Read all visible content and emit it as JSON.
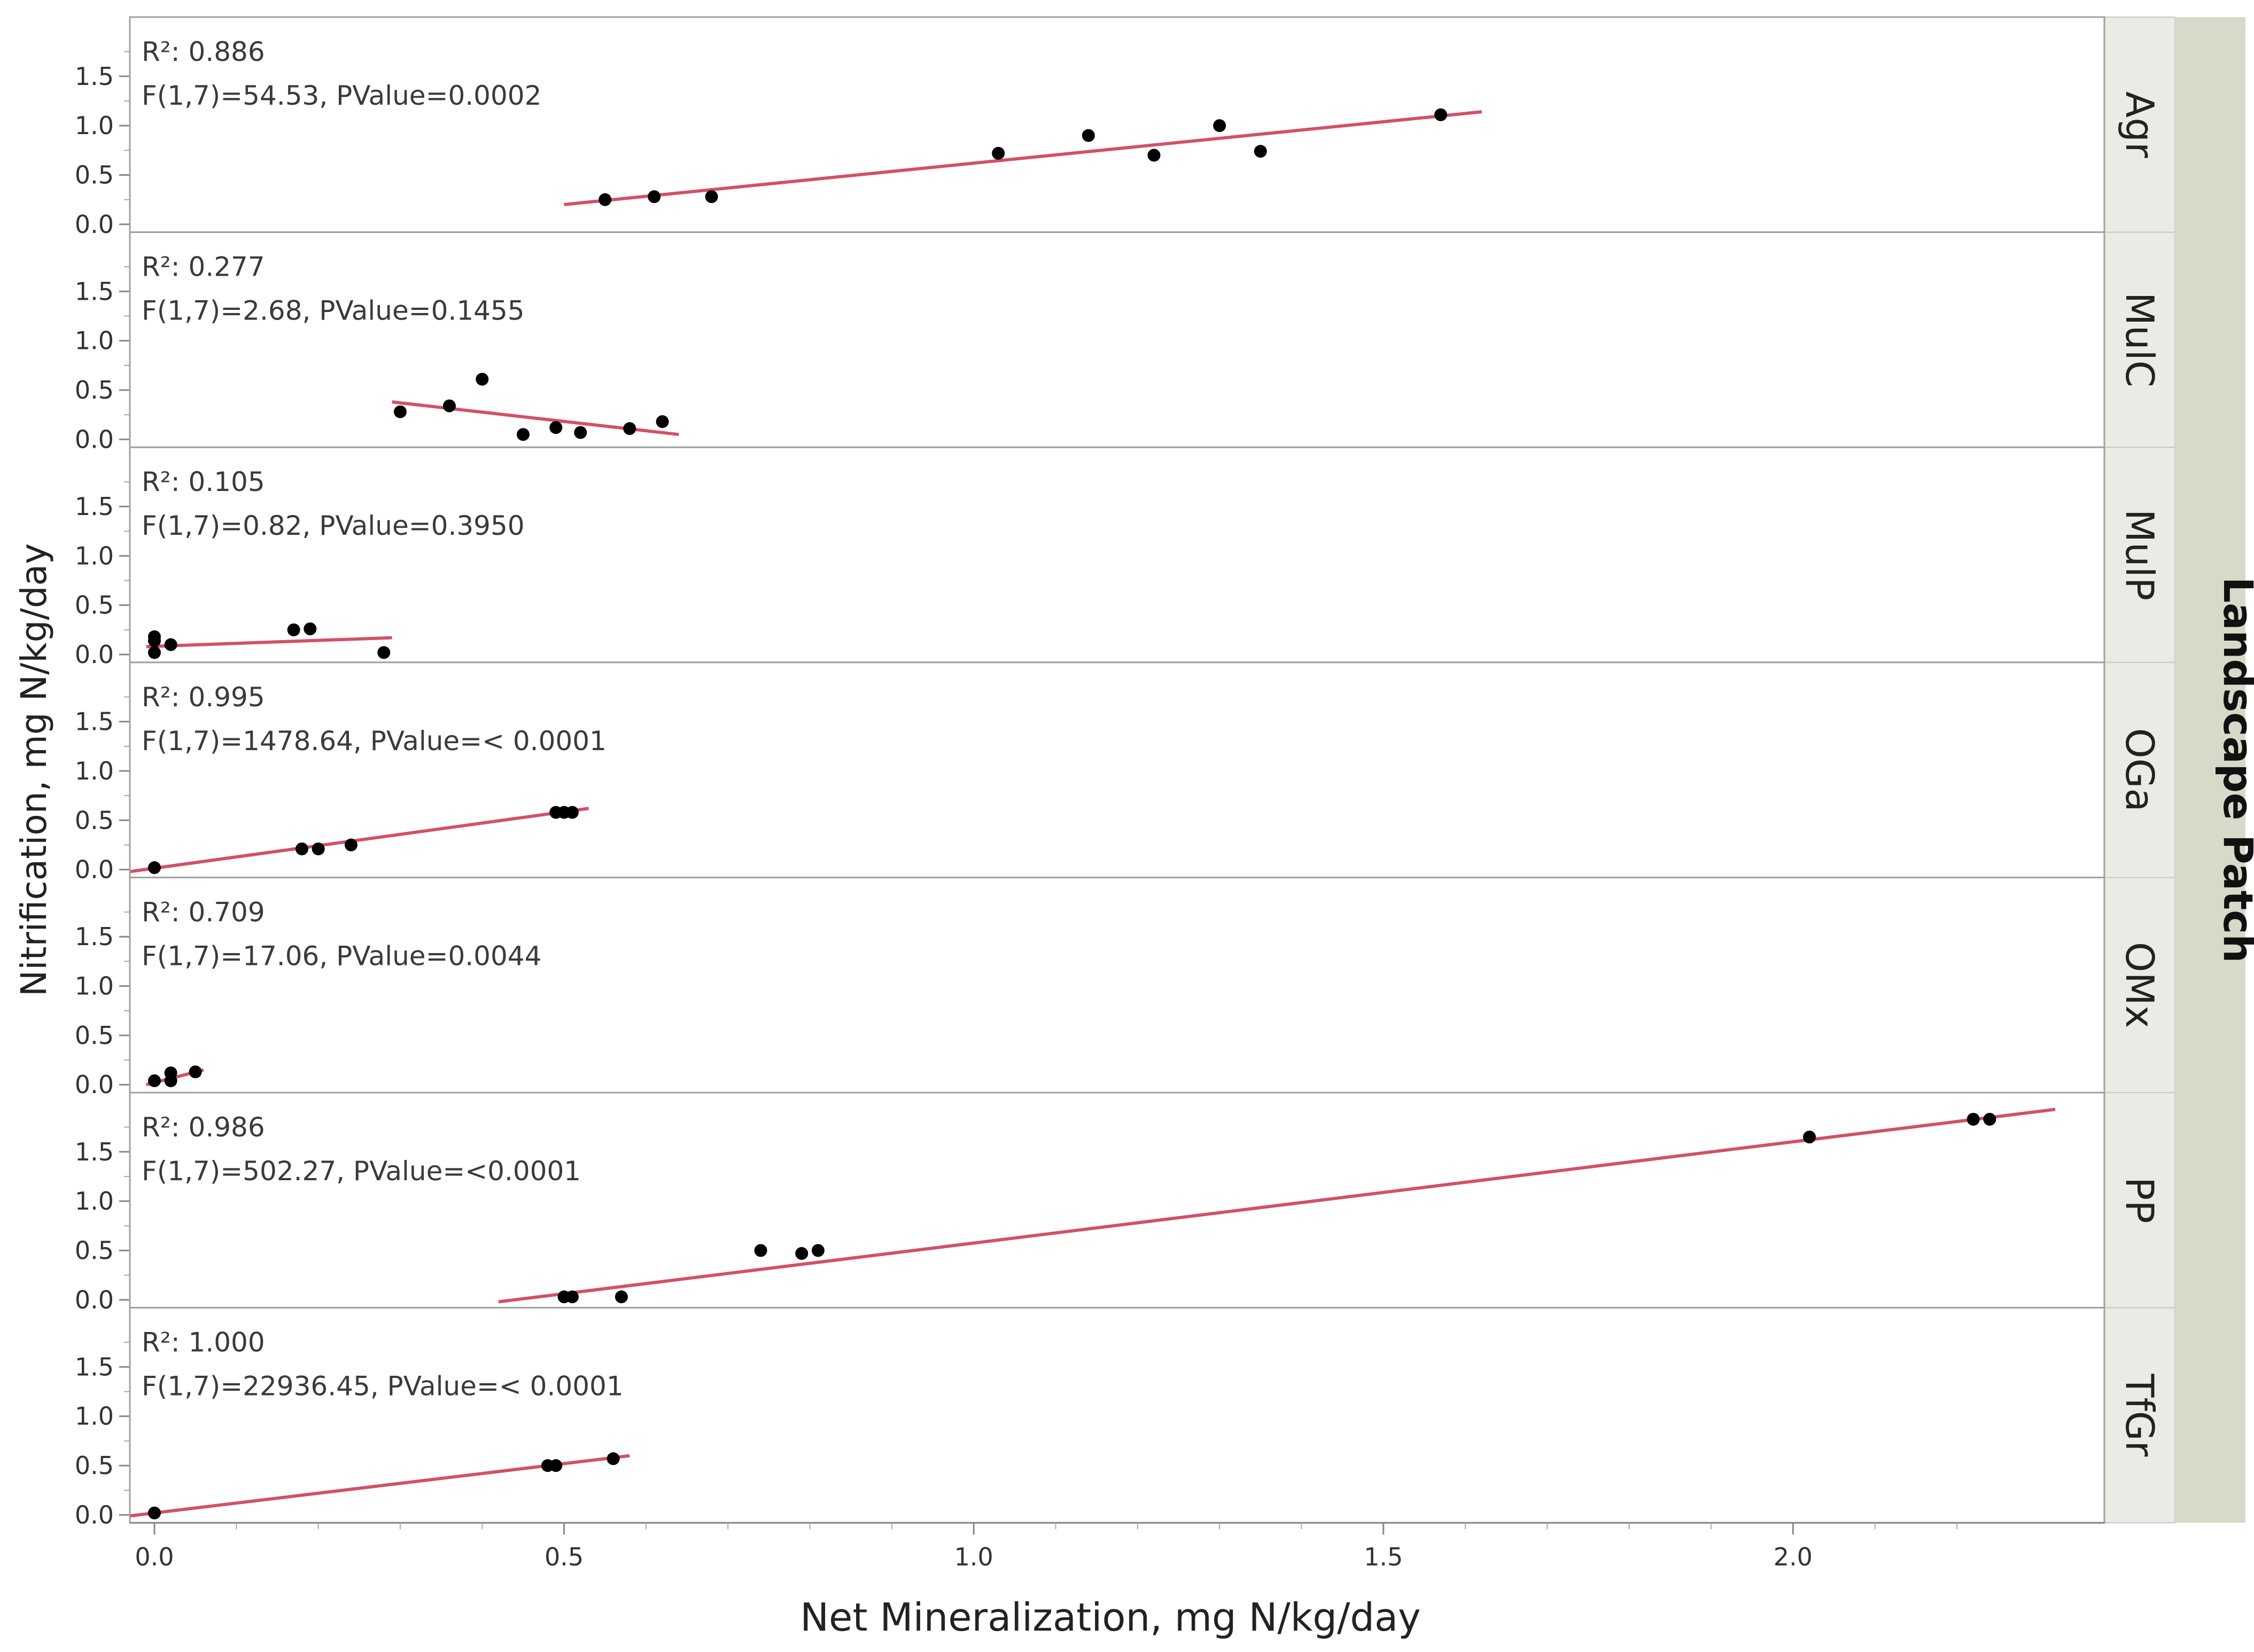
{
  "chart_data": {
    "type": "scatter",
    "xlabel": "Net Mineralization, mg N/kg/day",
    "ylabel": "Nitrification, mg N/kg/day",
    "group_title": "Landscape Patch",
    "xlim": [
      -0.03,
      2.38
    ],
    "ylim": [
      -0.08,
      2.1
    ],
    "xticks": [
      "0.0",
      "0.5",
      "1.0",
      "1.5",
      "2.0"
    ],
    "yticks": [
      "0.0",
      "0.5",
      "1.0",
      "1.5"
    ],
    "panels": [
      {
        "name": "Agr",
        "r2": "R²: 0.886",
        "stats": "F(1,7)=54.53, PValue=0.0002",
        "points": [
          [
            0.55,
            0.25
          ],
          [
            0.61,
            0.28
          ],
          [
            0.68,
            0.28
          ],
          [
            1.03,
            0.72
          ],
          [
            1.14,
            0.9
          ],
          [
            1.22,
            0.7
          ],
          [
            1.3,
            1.0
          ],
          [
            1.35,
            0.74
          ],
          [
            1.57,
            1.11
          ]
        ],
        "fit": [
          [
            0.5,
            0.2
          ],
          [
            1.62,
            1.14
          ]
        ]
      },
      {
        "name": "MulC",
        "r2": "R²: 0.277",
        "stats": "F(1,7)=2.68, PValue=0.1455",
        "points": [
          [
            0.3,
            0.28
          ],
          [
            0.36,
            0.34
          ],
          [
            0.4,
            0.61
          ],
          [
            0.45,
            0.05
          ],
          [
            0.49,
            0.12
          ],
          [
            0.52,
            0.07
          ],
          [
            0.58,
            0.11
          ],
          [
            0.62,
            0.18
          ]
        ],
        "fit": [
          [
            0.29,
            0.38
          ],
          [
            0.64,
            0.05
          ]
        ]
      },
      {
        "name": "MulP",
        "r2": "R²: 0.105",
        "stats": "F(1,7)=0.82, PValue=0.3950",
        "points": [
          [
            0.0,
            0.18
          ],
          [
            0.0,
            0.14
          ],
          [
            0.0,
            0.02
          ],
          [
            0.02,
            0.1
          ],
          [
            0.17,
            0.25
          ],
          [
            0.19,
            0.26
          ],
          [
            0.28,
            0.02
          ]
        ],
        "fit": [
          [
            -0.01,
            0.08
          ],
          [
            0.29,
            0.17
          ]
        ]
      },
      {
        "name": "OGa",
        "r2": "R²: 0.995",
        "stats": "F(1,7)=1478.64, PValue=< 0.0001",
        "points": [
          [
            0.0,
            0.02
          ],
          [
            0.18,
            0.21
          ],
          [
            0.2,
            0.21
          ],
          [
            0.24,
            0.25
          ],
          [
            0.49,
            0.58
          ],
          [
            0.5,
            0.58
          ],
          [
            0.51,
            0.58
          ]
        ],
        "fit": [
          [
            -0.03,
            -0.02
          ],
          [
            0.53,
            0.62
          ]
        ]
      },
      {
        "name": "OMx",
        "r2": "R²: 0.709",
        "stats": "F(1,7)=17.06, PValue=0.0044",
        "points": [
          [
            0.0,
            0.04
          ],
          [
            0.02,
            0.04
          ],
          [
            0.02,
            0.12
          ],
          [
            0.05,
            0.13
          ]
        ],
        "fit": [
          [
            -0.01,
            0.0
          ],
          [
            0.06,
            0.15
          ]
        ]
      },
      {
        "name": "PP",
        "r2": "R²: 0.986",
        "stats": "F(1,7)=502.27, PValue=<0.0001",
        "points": [
          [
            0.5,
            0.03
          ],
          [
            0.51,
            0.03
          ],
          [
            0.57,
            0.03
          ],
          [
            0.74,
            0.5
          ],
          [
            0.79,
            0.47
          ],
          [
            0.81,
            0.5
          ],
          [
            2.02,
            1.65
          ],
          [
            2.22,
            1.83
          ],
          [
            2.24,
            1.83
          ]
        ],
        "fit": [
          [
            0.42,
            -0.02
          ],
          [
            2.32,
            1.93
          ]
        ]
      },
      {
        "name": "TfGr",
        "r2": "R²: 1.000",
        "stats": "F(1,7)=22936.45, PValue=< 0.0001",
        "points": [
          [
            0.0,
            0.02
          ],
          [
            0.48,
            0.5
          ],
          [
            0.49,
            0.5
          ],
          [
            0.56,
            0.57
          ]
        ],
        "fit": [
          [
            -0.03,
            -0.01
          ],
          [
            0.58,
            0.6
          ]
        ]
      }
    ]
  }
}
